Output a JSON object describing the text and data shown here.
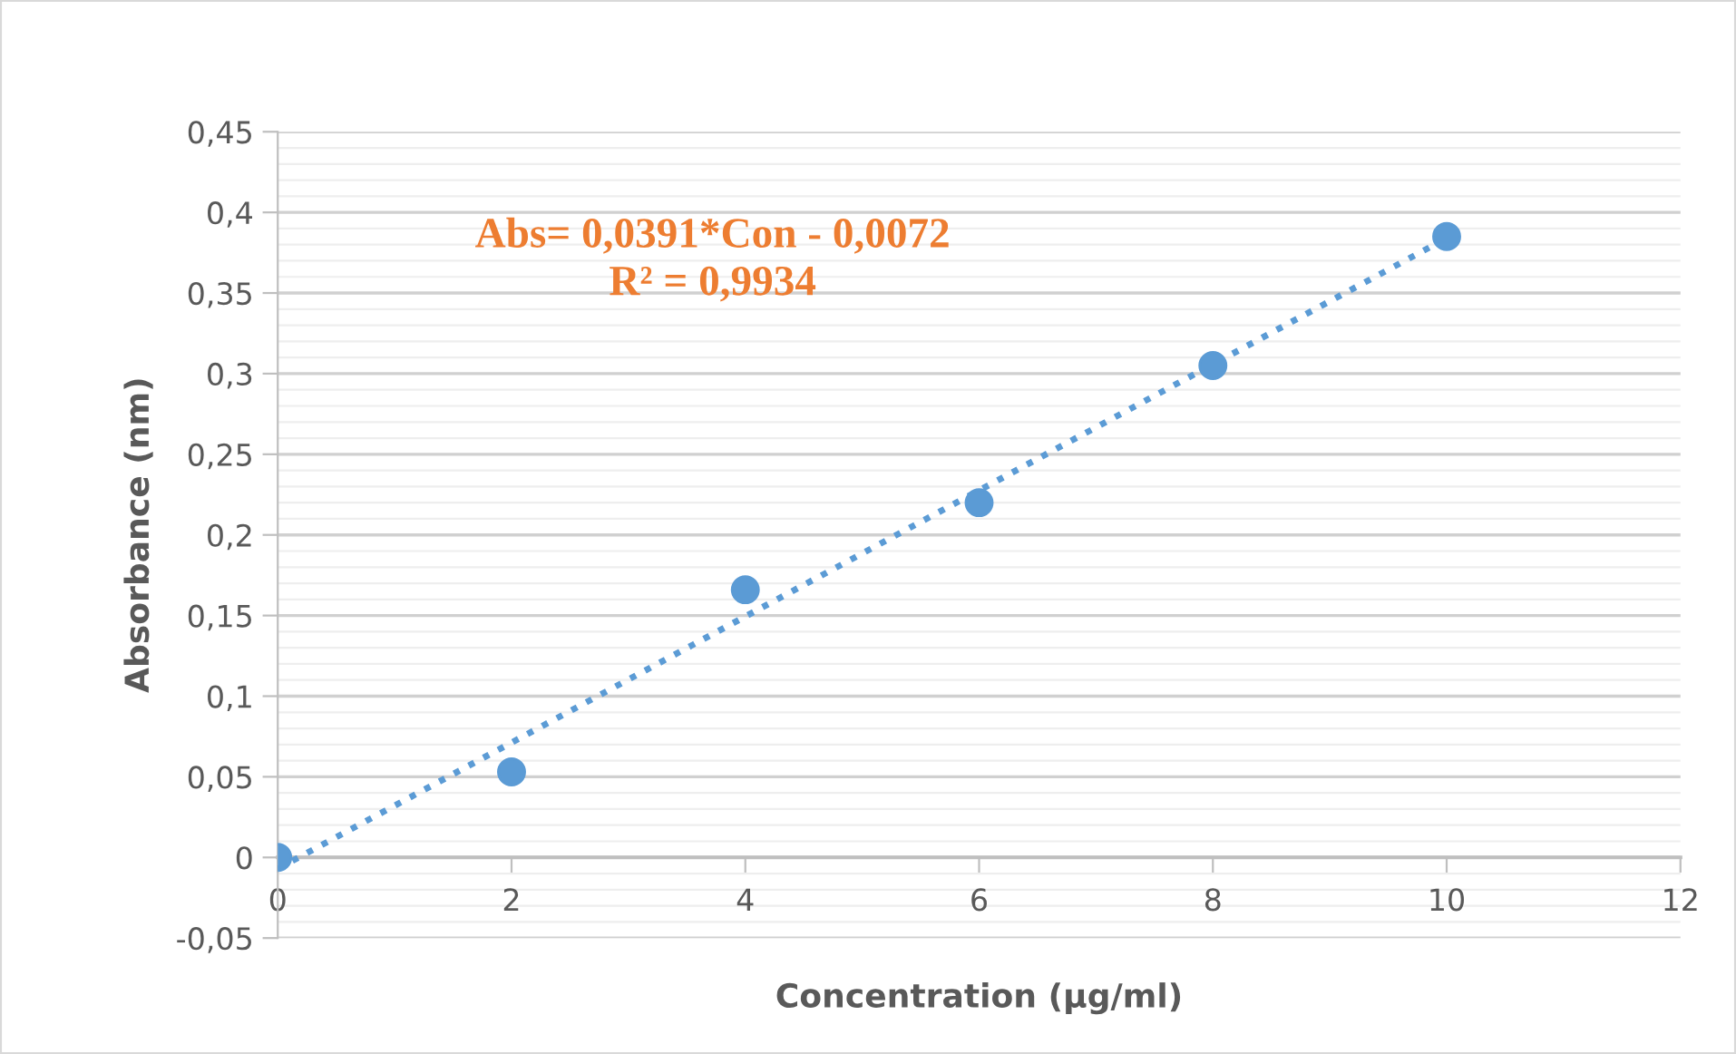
{
  "chart_data": {
    "type": "scatter",
    "xlabel": "Concentration (µg/ml)",
    "ylabel": "Absorbance (nm)",
    "x": [
      0,
      2,
      4,
      6,
      8,
      10
    ],
    "series": [
      {
        "color": "#5b9bd5",
        "values": [
          0,
          0.053,
          0.166,
          0.22,
          0.305,
          0.385
        ]
      },
      {
        "type": "line",
        "color": "#5b9bd5",
        "line_style": "dotted",
        "marker": "none",
        "x": [
          0,
          10
        ],
        "values": [
          -0.007,
          0.384
        ]
      }
    ],
    "marker": "circle",
    "xlim": [
      0,
      12
    ],
    "xticks": [
      0,
      2,
      4,
      6,
      8,
      10,
      12
    ],
    "ylim": [
      -0.05,
      0.45
    ],
    "yticks": [
      {
        "value": -0.05,
        "label": "-0,05"
      },
      0,
      {
        "value": 0.05,
        "label": "0,05"
      },
      {
        "value": 0.1,
        "label": "0,1"
      },
      {
        "value": 0.15,
        "label": "0,15"
      },
      {
        "value": 0.2,
        "label": "0,2"
      },
      {
        "value": 0.25,
        "label": "0,25"
      },
      {
        "value": 0.3,
        "label": "0,3"
      },
      {
        "value": 0.35,
        "label": "0,35"
      },
      {
        "value": 0.4,
        "label": "0,4"
      },
      {
        "value": 0.45,
        "label": "0,45"
      }
    ],
    "grid": "y",
    "legend": false,
    "annotations": [
      "Abs= 0,0391*Con - 0,0072\nR² = 0,9934"
    ]
  }
}
